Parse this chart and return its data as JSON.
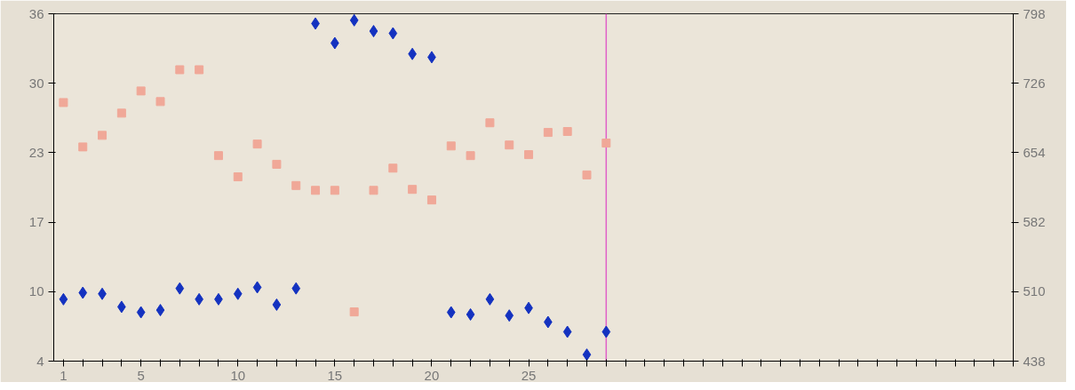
{
  "chart_data": {
    "type": "scatter",
    "x": [
      1,
      2,
      3,
      4,
      5,
      6,
      7,
      8,
      9,
      10,
      11,
      12,
      13,
      14,
      15,
      16,
      17,
      18,
      19,
      20,
      21,
      22,
      23,
      24,
      25,
      26,
      27,
      28,
      29
    ],
    "xlim": [
      0.5,
      50
    ],
    "xticks": [
      1,
      {
        "value": 2,
        "label": null
      },
      {
        "value": 3,
        "label": null
      },
      {
        "value": 4,
        "label": null
      },
      5,
      {
        "value": 6,
        "label": null
      },
      {
        "value": 7,
        "label": null
      },
      {
        "value": 8,
        "label": null
      },
      {
        "value": 9,
        "label": null
      },
      10,
      {
        "value": 11,
        "label": null
      },
      {
        "value": 12,
        "label": null
      },
      {
        "value": 13,
        "label": null
      },
      {
        "value": 14,
        "label": null
      },
      15,
      {
        "value": 16,
        "label": null
      },
      {
        "value": 17,
        "label": null
      },
      {
        "value": 18,
        "label": null
      },
      {
        "value": 19,
        "label": null
      },
      20,
      {
        "value": 21,
        "label": null
      },
      {
        "value": 22,
        "label": null
      },
      {
        "value": 23,
        "label": null
      },
      {
        "value": 24,
        "label": null
      },
      25,
      {
        "value": 26,
        "label": null
      },
      {
        "value": 27,
        "label": null
      },
      {
        "value": 28,
        "label": null
      },
      {
        "value": 29,
        "label": null
      },
      {
        "value": 30,
        "label": null
      },
      {
        "value": 31,
        "label": null
      },
      {
        "value": 32,
        "label": null
      },
      {
        "value": 33,
        "label": null
      },
      {
        "value": 34,
        "label": null
      },
      {
        "value": 35,
        "label": null
      },
      {
        "value": 36,
        "label": null
      },
      {
        "value": 37,
        "label": null
      },
      {
        "value": 38,
        "label": null
      },
      {
        "value": 39,
        "label": null
      },
      {
        "value": 40,
        "label": null
      },
      {
        "value": 41,
        "label": null
      },
      {
        "value": 42,
        "label": null
      },
      {
        "value": 43,
        "label": null
      },
      {
        "value": 44,
        "label": null
      },
      {
        "value": 45,
        "label": null
      },
      {
        "value": 46,
        "label": null
      },
      {
        "value": 47,
        "label": null
      },
      {
        "value": 48,
        "label": null
      },
      {
        "value": 49,
        "label": null
      },
      {
        "value": 50,
        "label": null
      }
    ],
    "ylim": [
      4,
      36
    ],
    "yticks": [
      4,
      {
        "value": 10.4,
        "label": "10"
      },
      {
        "value": 16.8,
        "label": "17"
      },
      {
        "value": 23.2,
        "label": "23"
      },
      {
        "value": 29.6,
        "label": "30"
      },
      36
    ],
    "y2lim": [
      438,
      798
    ],
    "y2ticks": [
      438,
      510,
      582,
      654,
      726,
      798
    ],
    "grid": false,
    "series": [
      {
        "color": "#1432c0",
        "marker": "diamond",
        "values": [
          9.7,
          10.3,
          10.2,
          9.0,
          8.5,
          8.7,
          10.7,
          9.7,
          9.7,
          10.2,
          10.8,
          9.2,
          10.7,
          35.1,
          33.3,
          35.4,
          34.4,
          34.2,
          32.3,
          32.0,
          8.5,
          8.3,
          9.7,
          8.2,
          8.9,
          7.6,
          6.7,
          4.6,
          6.7
        ]
      },
      {
        "color": "#f0a898",
        "marker": "square",
        "axis": "y2",
        "values": [
          706,
          660,
          672,
          695,
          718,
          707,
          740,
          740,
          651,
          629,
          663,
          642,
          620,
          615,
          615,
          489,
          615,
          638,
          616,
          605,
          661,
          651,
          685,
          662,
          652,
          675,
          676,
          631,
          664
        ]
      }
    ],
    "ref_lines": [
      {
        "axis": "x",
        "value": 29,
        "color": "#e060c8"
      }
    ]
  }
}
